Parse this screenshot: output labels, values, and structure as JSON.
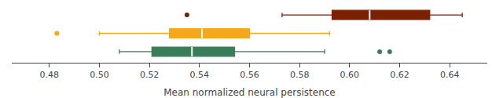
{
  "chart_data": {
    "type": "box",
    "orientation": "horizontal",
    "xlabel": "Mean normalized neural persistence",
    "xlim": [
      0.465,
      0.655
    ],
    "xticks": [
      0.48,
      {
        "value": 0.5,
        "label": "0.50"
      },
      0.52,
      0.54,
      0.56,
      0.58,
      {
        "value": 0.6,
        "label": "0.60"
      },
      0.62,
      0.64
    ],
    "grid": false,
    "tick_labels": "x",
    "series": [
      {
        "color": "#7B2000",
        "q1": 0.593,
        "median": 0.608,
        "q3": 0.632,
        "whisker_low": 0.573,
        "whisker_high": 0.645,
        "fliers": [
          0.535
        ]
      },
      {
        "color": "#F5A81C",
        "q1": 0.528,
        "median": 0.541,
        "q3": 0.56,
        "whisker_low": 0.5,
        "whisker_high": 0.592,
        "fliers": [
          0.483
        ]
      },
      {
        "color": "#3A7D5B",
        "q1": 0.521,
        "median": 0.537,
        "q3": 0.554,
        "whisker_low": 0.508,
        "whisker_high": 0.59,
        "fliers": [
          0.612,
          0.616
        ]
      }
    ]
  }
}
